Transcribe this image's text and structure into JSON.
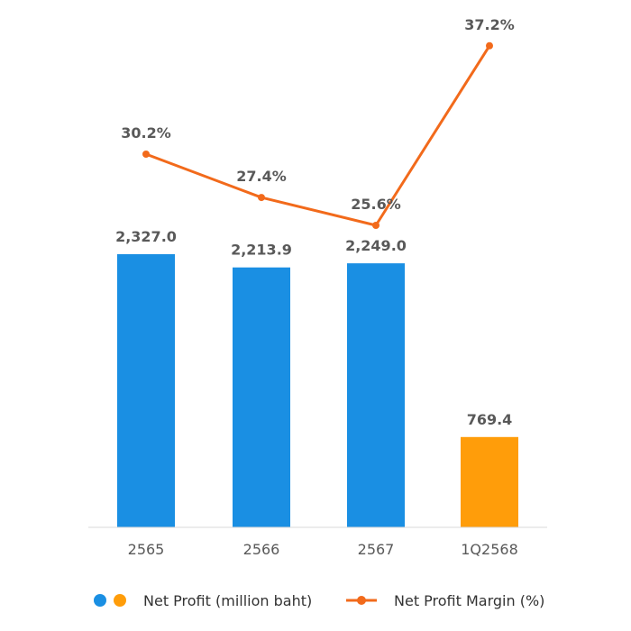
{
  "chart_data": {
    "type": "bar",
    "categories": [
      "2565",
      "2566",
      "2567",
      "1Q2568"
    ],
    "bar_series": {
      "name": "Net Profit (million baht)",
      "values": [
        2327.0,
        2213.9,
        2249.0,
        769.4
      ],
      "value_labels": [
        "2,327.0",
        "2,213.9",
        "2,249.0",
        "769.4"
      ],
      "colors": [
        "#1a8fe3",
        "#1a8fe3",
        "#1a8fe3",
        "#ff9d0a"
      ],
      "ylim": [
        0,
        4300
      ]
    },
    "line_series": {
      "name": "Net Profit Margin (%)",
      "values": [
        30.2,
        27.4,
        25.6,
        37.2
      ],
      "value_labels": [
        "30.2%",
        "27.4%",
        "25.6%",
        "37.2%"
      ],
      "color": "#f26a1b",
      "ylim": [
        21,
        38.7
      ]
    },
    "legend": {
      "position": "bottom",
      "bar_label": "Net Profit (million baht)",
      "line_label": "Net Profit Margin (%)",
      "bar_colors": [
        "#1a8fe3",
        "#ff9d0a"
      ]
    },
    "grid": false
  }
}
